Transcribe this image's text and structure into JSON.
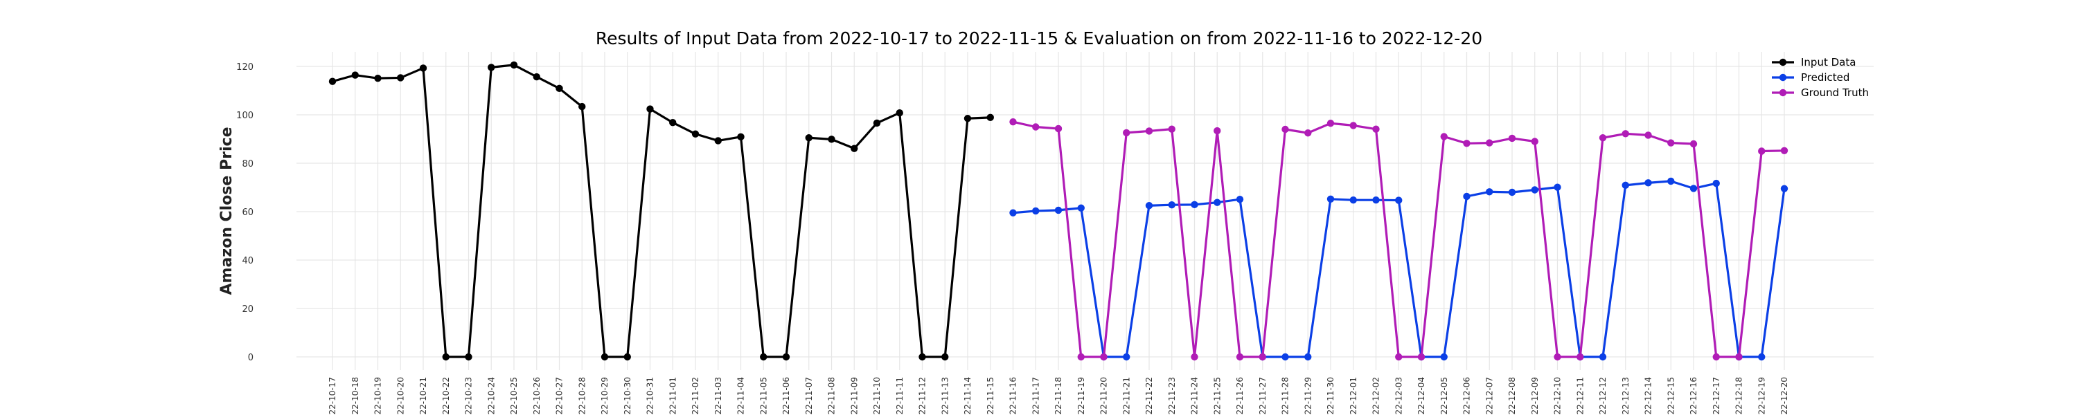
{
  "chart_data": {
    "type": "line",
    "title": "Results of Input Data from 2022-10-17 to 2022-11-15 & Evaluation on from 2022-11-16 to 2022-12-20",
    "xlabel": "",
    "ylabel": "Amazon Close Price",
    "ylim": [
      -5,
      127
    ],
    "yticks": [
      0,
      20,
      40,
      60,
      80,
      100,
      120
    ],
    "grid": true,
    "legend_position": "top-right",
    "x_tick_labels": [
      "2022-10-17",
      "2022-10-18",
      "2022-10-19",
      "2022-10-20",
      "2022-10-21",
      "2022-10-22",
      "2022-10-23",
      "2022-10-24",
      "2022-10-25",
      "2022-10-26",
      "2022-10-27",
      "2022-10-28",
      "2022-10-29",
      "2022-10-30",
      "2022-10-31",
      "2022-11-01",
      "2022-11-02",
      "2022-11-03",
      "2022-11-04",
      "2022-11-05",
      "2022-11-06",
      "2022-11-07",
      "2022-11-08",
      "2022-11-09",
      "2022-11-10",
      "2022-11-11",
      "2022-11-12",
      "2022-11-13",
      "2022-11-14",
      "2022-11-15",
      "2022-11-16",
      "2022-11-17",
      "2022-11-18",
      "2022-11-19",
      "2022-11-20",
      "2022-11-21",
      "2022-11-22",
      "2022-11-23",
      "2022-11-24",
      "2022-11-25",
      "2022-11-26",
      "2022-11-27",
      "2022-11-28",
      "2022-11-29",
      "2022-11-30",
      "2022-12-01",
      "2022-12-02",
      "2022-12-03",
      "2022-12-04",
      "2022-12-05",
      "2022-12-06",
      "2022-12-07",
      "2022-12-08",
      "2022-12-09",
      "2022-12-10",
      "2022-12-11",
      "2022-12-12",
      "2022-12-13",
      "2022-12-14",
      "2022-12-15",
      "2022-12-16",
      "2022-12-17",
      "2022-12-18",
      "2022-12-19",
      "2022-12-20"
    ],
    "series": [
      {
        "name": "Input Data",
        "color": "#000000",
        "x": [
          "2022-10-17",
          "2022-10-18",
          "2022-10-19",
          "2022-10-20",
          "2022-10-21",
          "2022-10-22",
          "2022-10-23",
          "2022-10-24",
          "2022-10-25",
          "2022-10-26",
          "2022-10-27",
          "2022-10-28",
          "2022-10-29",
          "2022-10-30",
          "2022-10-31",
          "2022-11-01",
          "2022-11-02",
          "2022-11-03",
          "2022-11-04",
          "2022-11-05",
          "2022-11-06",
          "2022-11-07",
          "2022-11-08",
          "2022-11-09",
          "2022-11-10",
          "2022-11-11",
          "2022-11-12",
          "2022-11-13",
          "2022-11-14",
          "2022-11-15"
        ],
        "values": [
          113.8,
          116.4,
          115.1,
          115.3,
          119.3,
          0,
          0,
          119.6,
          120.6,
          115.7,
          110.9,
          103.4,
          0,
          0,
          102.4,
          96.8,
          92.1,
          89.3,
          90.9,
          0,
          0,
          90.5,
          89.9,
          86.1,
          96.6,
          100.8,
          0,
          0,
          98.5,
          98.9
        ]
      },
      {
        "name": "Predicted",
        "color": "#0b3fe6",
        "x": [
          "2022-11-16",
          "2022-11-17",
          "2022-11-18",
          "2022-11-19",
          "2022-11-20",
          "2022-11-21",
          "2022-11-22",
          "2022-11-23",
          "2022-11-24",
          "2022-11-25",
          "2022-11-26",
          "2022-11-27",
          "2022-11-28",
          "2022-11-29",
          "2022-11-30",
          "2022-12-01",
          "2022-12-02",
          "2022-12-03",
          "2022-12-04",
          "2022-12-05",
          "2022-12-06",
          "2022-12-07",
          "2022-12-08",
          "2022-12-09",
          "2022-12-10",
          "2022-12-11",
          "2022-12-12",
          "2022-12-13",
          "2022-12-14",
          "2022-12-15",
          "2022-12-16",
          "2022-12-17",
          "2022-12-18",
          "2022-12-19",
          "2022-12-20"
        ],
        "values": [
          59.5,
          60.3,
          60.6,
          61.5,
          0,
          0,
          62.5,
          62.8,
          62.9,
          63.8,
          65.1,
          0,
          0,
          0,
          65.2,
          64.8,
          64.8,
          64.7,
          0,
          0,
          66.3,
          68.2,
          68.0,
          69.0,
          70.1,
          0,
          0,
          70.9,
          71.9,
          72.6,
          69.6,
          71.7,
          0,
          0,
          69.5
        ]
      },
      {
        "name": "Ground Truth",
        "color": "#b01cb6",
        "x": [
          "2022-11-16",
          "2022-11-17",
          "2022-11-18",
          "2022-11-19",
          "2022-11-20",
          "2022-11-21",
          "2022-11-22",
          "2022-11-23",
          "2022-11-24",
          "2022-11-25",
          "2022-11-26",
          "2022-11-27",
          "2022-11-28",
          "2022-11-29",
          "2022-11-30",
          "2022-12-01",
          "2022-12-02",
          "2022-12-03",
          "2022-12-04",
          "2022-12-05",
          "2022-12-06",
          "2022-12-07",
          "2022-12-08",
          "2022-12-09",
          "2022-12-10",
          "2022-12-11",
          "2022-12-12",
          "2022-12-13",
          "2022-12-14",
          "2022-12-15",
          "2022-12-16",
          "2022-12-17",
          "2022-12-18",
          "2022-12-19",
          "2022-12-20"
        ],
        "values": [
          97.1,
          95.0,
          94.3,
          0,
          0,
          92.6,
          93.3,
          94.1,
          0,
          93.4,
          0,
          0,
          94.0,
          92.5,
          96.5,
          95.6,
          94.1,
          0,
          0,
          91.0,
          88.2,
          88.4,
          90.3,
          89.0,
          0,
          0,
          90.5,
          92.2,
          91.6,
          88.4,
          88.0,
          0,
          0,
          85.0,
          85.2
        ]
      }
    ]
  }
}
